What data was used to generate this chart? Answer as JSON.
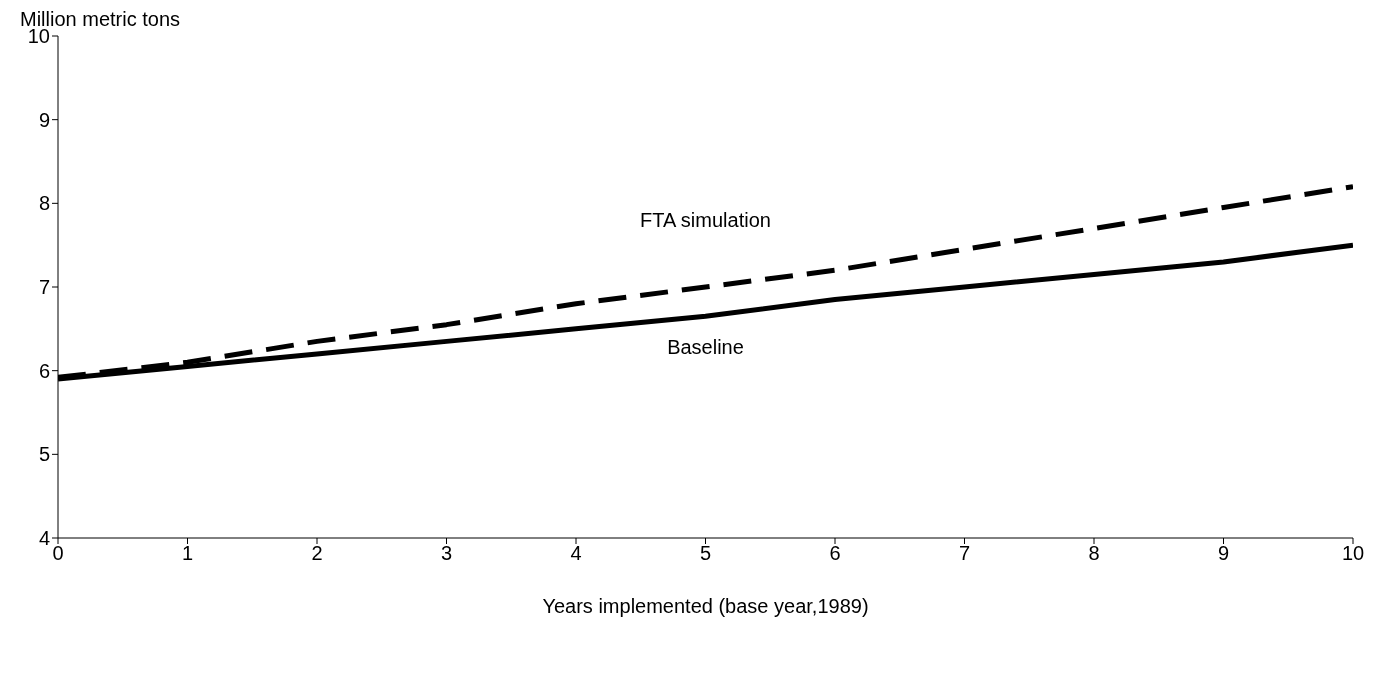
{
  "chart_data": {
    "type": "line",
    "ylabel": "Million metric tons",
    "xlabel": "Years implemented (base year,1989)",
    "x": [
      0,
      1,
      2,
      3,
      4,
      5,
      6,
      7,
      8,
      9,
      10
    ],
    "series": [
      {
        "name": "FTA simulation",
        "color": "#000000",
        "line_style": "dashed",
        "values": [
          5.92,
          6.1,
          6.35,
          6.55,
          6.8,
          7.0,
          7.2,
          7.45,
          7.7,
          7.95,
          8.2
        ]
      },
      {
        "name": "Baseline",
        "color": "#000000",
        "line_style": "solid",
        "values": [
          5.9,
          6.05,
          6.2,
          6.35,
          6.5,
          6.65,
          6.85,
          7.0,
          7.15,
          7.3,
          7.5
        ]
      }
    ],
    "xlim": [
      0,
      10
    ],
    "xticks": [
      0,
      1,
      2,
      3,
      4,
      5,
      6,
      7,
      8,
      9,
      10
    ],
    "ylim": [
      4,
      10
    ],
    "yticks": [
      4,
      5,
      6,
      7,
      8,
      9,
      10
    ],
    "grid": false,
    "legend": false,
    "marker": "none"
  }
}
